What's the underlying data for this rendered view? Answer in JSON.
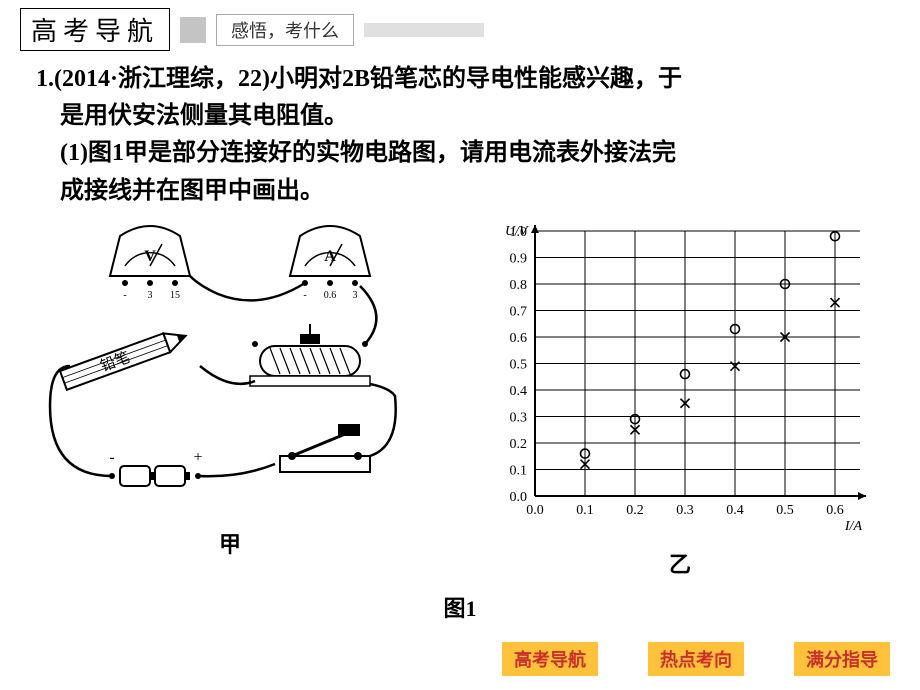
{
  "header": {
    "title_box": "高考导航",
    "sub_box": "感悟，考什么"
  },
  "question": {
    "line1": "1.(2014·浙江理综，22)小明对2B铅笔芯的导电性能感兴趣，于",
    "line2": "是用伏安法侧量其电阻值。",
    "line3": "(1)图1甲是部分连接好的实物电路图，请用电流表外接法完",
    "line4": "成接线并在图甲中画出。"
  },
  "circuit": {
    "voltmeter_label": "V",
    "voltmeter_scale": [
      "-",
      "3",
      "15"
    ],
    "ammeter_label": "A",
    "ammeter_scale": [
      "-",
      "0.6",
      "3"
    ],
    "pencil_label": "铅笔",
    "battery": {
      "minus": "-",
      "plus": "+"
    },
    "caption": "甲"
  },
  "chart": {
    "type": "scatter",
    "xlabel": "I/A",
    "ylabel": "U/V",
    "xlim": [
      0.0,
      0.65
    ],
    "ylim": [
      0.0,
      1.0
    ],
    "xticks": [
      0.0,
      0.1,
      0.2,
      0.3,
      0.4,
      0.5,
      0.6
    ],
    "yticks": [
      0.0,
      0.1,
      0.2,
      0.3,
      0.4,
      0.5,
      0.6,
      0.7,
      0.8,
      0.9,
      1.0
    ],
    "series_circle": {
      "marker": "circle",
      "points": [
        [
          0.1,
          0.16
        ],
        [
          0.2,
          0.29
        ],
        [
          0.3,
          0.46
        ],
        [
          0.4,
          0.63
        ],
        [
          0.5,
          0.8
        ],
        [
          0.6,
          0.98
        ]
      ]
    },
    "series_cross": {
      "marker": "x",
      "points": [
        [
          0.1,
          0.12
        ],
        [
          0.2,
          0.25
        ],
        [
          0.3,
          0.35
        ],
        [
          0.4,
          0.49
        ],
        [
          0.5,
          0.6
        ],
        [
          0.6,
          0.73
        ]
      ]
    },
    "grid_color": "#000000",
    "background_color": "#ffffff",
    "axis_fontsize": 14,
    "caption": "乙"
  },
  "fig_label": "图1",
  "buttons": {
    "b1": "高考导航",
    "b2": "热点考向",
    "b3": "满分指导"
  }
}
